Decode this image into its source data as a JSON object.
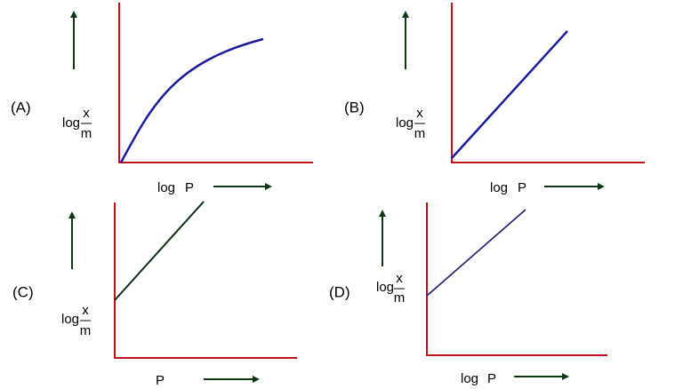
{
  "panels": [
    {
      "label": "(A)",
      "y_label": {
        "prefix": "log",
        "numerator": "x",
        "denominator": "m"
      },
      "x_label": [
        "log",
        "P"
      ]
    },
    {
      "label": "(B)",
      "y_label": {
        "prefix": "log",
        "numerator": "x",
        "denominator": "m"
      },
      "x_label": [
        "log",
        "P"
      ]
    },
    {
      "label": "(C)",
      "y_label": {
        "prefix": "log",
        "numerator": "x",
        "denominator": "m"
      },
      "x_label": [
        "P"
      ]
    },
    {
      "label": "(D)",
      "y_label": {
        "prefix": "log",
        "numerator": "x",
        "denominator": "m"
      },
      "x_label": [
        "log",
        "P"
      ]
    }
  ]
}
